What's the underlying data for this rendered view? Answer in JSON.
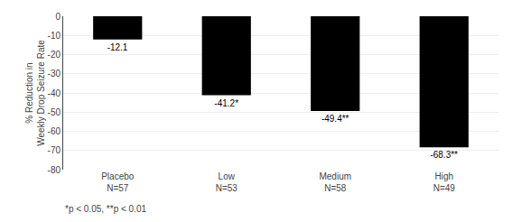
{
  "chart_data": {
    "type": "bar",
    "categories": [
      "Placebo\nN=57",
      "Low\nN=53",
      "Medium\nN=58",
      "High\nN=49"
    ],
    "values": [
      -12.1,
      -41.2,
      -49.4,
      -68.3
    ],
    "value_labels": [
      "-12.1",
      "-41.2*",
      "-49.4**",
      "-68.3**"
    ],
    "data_labels": true,
    "color": "#000000",
    "ylabel": "% Reduction in\nWeekly Drop Seizure Rate",
    "ylim": [
      -80,
      0
    ],
    "yticks": [
      0,
      -10,
      -20,
      -30,
      -40,
      -50,
      -60,
      -70,
      -80
    ],
    "grid": true,
    "annotations": [
      "*p < 0.05, **p < 0.01"
    ]
  }
}
